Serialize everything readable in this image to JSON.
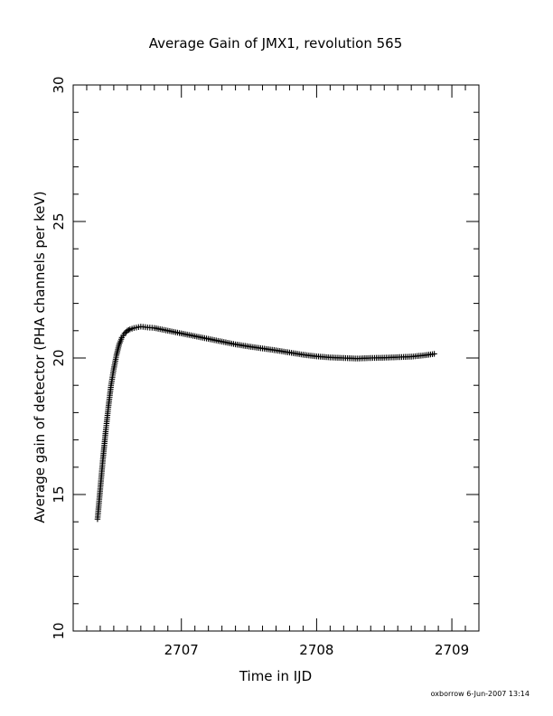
{
  "chart_data": {
    "type": "scatter",
    "title": "Average Gain of JMX1, revolution 565",
    "xlabel": "Time in IJD",
    "ylabel": "Average gain of detector (PHA channels per keV)",
    "xlim": [
      2706.2,
      2709.2
    ],
    "ylim": [
      10,
      30
    ],
    "x_ticks": [
      2707,
      2708,
      2709
    ],
    "y_ticks": [
      10,
      15,
      20,
      25,
      30
    ],
    "x_tick_labels": [
      "2707",
      "2708",
      "2709"
    ],
    "y_tick_labels": [
      "10",
      "15",
      "20",
      "25",
      "30"
    ],
    "marker": "plus",
    "grid": false,
    "footer": "oxborrow   6-Jun-2007 13:14",
    "series": [
      {
        "x": [
          2706.38,
          2706.4,
          2706.42,
          2706.44,
          2706.46,
          2706.48,
          2706.5,
          2706.52,
          2706.54,
          2706.56,
          2706.58,
          2706.6,
          2706.62,
          2706.65,
          2706.7,
          2706.75,
          2706.8,
          2706.9,
          2707.0,
          2707.1,
          2707.2,
          2707.3,
          2707.4,
          2707.5,
          2707.6,
          2707.7,
          2707.8,
          2707.9,
          2708.0,
          2708.1,
          2708.2,
          2708.3,
          2708.4,
          2708.5,
          2708.6,
          2708.7,
          2708.8,
          2708.87
        ],
        "y": [
          14.1,
          15.2,
          16.3,
          17.3,
          18.2,
          19.0,
          19.6,
          20.1,
          20.5,
          20.75,
          20.9,
          21.0,
          21.05,
          21.1,
          21.15,
          21.12,
          21.1,
          21.0,
          20.9,
          20.8,
          20.7,
          20.6,
          20.5,
          20.42,
          20.35,
          20.28,
          20.2,
          20.12,
          20.06,
          20.02,
          20.0,
          19.98,
          20.0,
          20.01,
          20.03,
          20.05,
          20.1,
          20.15
        ]
      }
    ]
  }
}
